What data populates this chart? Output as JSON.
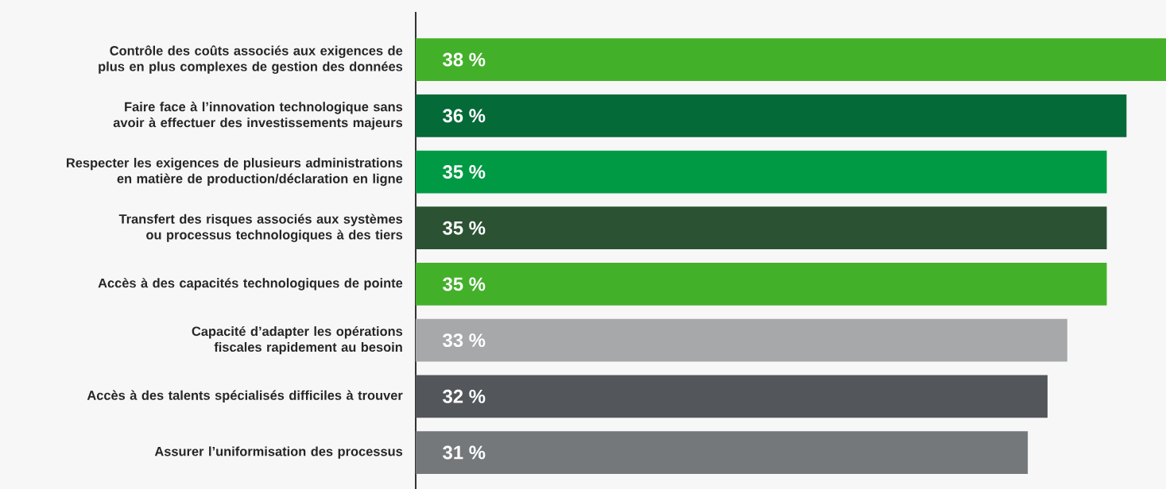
{
  "chart_data": {
    "type": "bar",
    "orientation": "horizontal",
    "categories": [
      "Contrôle des coûts associés aux exigences de plus en plus complexes de gestion des données",
      "Faire face à l’innovation technologique sans avoir à effectuer des investissements majeurs",
      "Respecter les exigences de plusieurs administrations en matière de production/déclaration en ligne",
      "Transfert des risques associés aux systèmes ou processus technologiques à des tiers",
      "Accès à des capacités technologiques de pointe",
      "Capacité d’adapter les opérations fiscales rapidement au besoin",
      "Accès à des talents spécialisés difficiles à trouver",
      "Assurer l’uniformisation des processus"
    ],
    "values": [
      38,
      36,
      35,
      35,
      35,
      33,
      32,
      31
    ],
    "value_labels": [
      "38 %",
      "36 %",
      "35 %",
      "35 %",
      "35 %",
      "33 %",
      "32 %",
      "31 %"
    ],
    "colors": [
      "#43b02a",
      "#046a38",
      "#009a44",
      "#2c5234",
      "#43b02a",
      "#a7a8aa",
      "#53565a",
      "#75787b"
    ]
  }
}
